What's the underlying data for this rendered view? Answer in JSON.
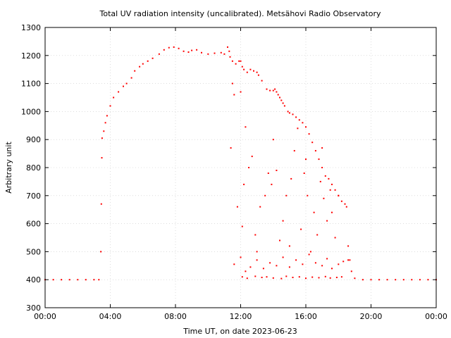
{
  "chart_data": {
    "type": "scatter",
    "title": "Total UV radiation intensity (uncalibrated). Metsähovi Radio Observatory",
    "xlabel": "Time UT, on date 2023-06-23",
    "ylabel": "Arbitrary unit",
    "xlim": [
      0,
      24
    ],
    "ylim": [
      300,
      1300
    ],
    "x_ticks": [
      0,
      4,
      8,
      12,
      16,
      20,
      24
    ],
    "x_tick_labels": [
      "00:00",
      "04:00",
      "08:00",
      "12:00",
      "16:00",
      "20:00",
      "00:00"
    ],
    "y_ticks": [
      300,
      400,
      500,
      600,
      700,
      800,
      900,
      1000,
      1100,
      1200,
      1300
    ],
    "y_tick_labels": [
      "300",
      "400",
      "500",
      "600",
      "700",
      "800",
      "900",
      "1000",
      "1100",
      "1200",
      "1300"
    ],
    "grid": true,
    "marker_color": "#ff0000",
    "series": [
      {
        "x": [
          0.0,
          0.5,
          1.0,
          1.5,
          2.0,
          2.5,
          3.0,
          3.3,
          3.42,
          3.45,
          3.48,
          3.5,
          3.6,
          3.7,
          3.8,
          4.0,
          4.2,
          4.5,
          4.8,
          5.0,
          5.3,
          5.5,
          5.8,
          6.0,
          6.3,
          6.6,
          7.0,
          7.3,
          7.6,
          7.9,
          8.2,
          8.5,
          8.8,
          9.0,
          9.3,
          9.6,
          10.0,
          10.4,
          10.8,
          11.0,
          11.2,
          11.3,
          11.35,
          11.5,
          11.7,
          11.9,
          12.0,
          12.1,
          12.2,
          12.4,
          12.6,
          12.8,
          13.0,
          13.1,
          13.3,
          13.6,
          13.8,
          14.0,
          14.1,
          14.2,
          14.3,
          14.4,
          14.5,
          14.6,
          14.7,
          14.9,
          15.0,
          15.2,
          15.4,
          15.6,
          15.8,
          16.0,
          16.2,
          16.4,
          16.6,
          16.8,
          17.0,
          17.2,
          17.4,
          17.6,
          17.8,
          18.0,
          18.2,
          18.4,
          18.5,
          18.6,
          18.7,
          18.8,
          19.0,
          19.5,
          20.0,
          20.5,
          21.0,
          21.5,
          22.0,
          22.5,
          23.0,
          23.5,
          24.0,
          11.4,
          11.5,
          11.6,
          11.8,
          12.0,
          12.1,
          12.2,
          12.3,
          12.5,
          12.7,
          12.9,
          13.0,
          13.2,
          13.5,
          13.7,
          13.9,
          14.0,
          14.2,
          14.4,
          14.6,
          14.8,
          15.0,
          15.1,
          15.3,
          15.5,
          15.7,
          15.9,
          16.0,
          16.1,
          16.3,
          16.5,
          16.7,
          16.9,
          17.0,
          17.1,
          17.3,
          17.5,
          17.6,
          17.8,
          18.0,
          11.6,
          12.0,
          12.3,
          12.6,
          13.0,
          13.4,
          13.8,
          14.2,
          14.6,
          15.0,
          15.4,
          15.8,
          16.2,
          16.6,
          17.0,
          17.3,
          17.6,
          18.0,
          18.3,
          18.6,
          12.1,
          12.4,
          12.9,
          13.3,
          13.6,
          14.0,
          14.5,
          14.8,
          15.2,
          15.6,
          16.0,
          16.4,
          16.8,
          17.2,
          17.5,
          17.9,
          18.2
        ],
        "y": [
          400,
          400,
          400,
          400,
          400,
          400,
          400,
          400,
          500,
          670,
          835,
          905,
          930,
          960,
          985,
          1020,
          1050,
          1070,
          1090,
          1100,
          1120,
          1145,
          1160,
          1170,
          1180,
          1190,
          1205,
          1220,
          1228,
          1230,
          1225,
          1215,
          1212,
          1218,
          1220,
          1210,
          1205,
          1208,
          1210,
          1205,
          1230,
          1215,
          1195,
          1180,
          1170,
          1180,
          1180,
          1160,
          1150,
          1140,
          1150,
          1145,
          1140,
          1130,
          1110,
          1080,
          1075,
          1075,
          1080,
          1070,
          1060,
          1050,
          1040,
          1030,
          1020,
          1000,
          995,
          990,
          980,
          970,
          960,
          945,
          920,
          890,
          860,
          830,
          800,
          770,
          760,
          740,
          720,
          700,
          680,
          670,
          660,
          520,
          470,
          430,
          405,
          400,
          400,
          400,
          400,
          400,
          400,
          400,
          400,
          400,
          400,
          870,
          1100,
          1060,
          660,
          1070,
          590,
          740,
          945,
          800,
          840,
          560,
          500,
          660,
          700,
          780,
          740,
          900,
          790,
          540,
          610,
          700,
          520,
          760,
          860,
          940,
          580,
          780,
          830,
          700,
          500,
          640,
          560,
          750,
          870,
          690,
          610,
          720,
          640,
          550,
          700,
          455,
          480,
          430,
          445,
          470,
          440,
          460,
          450,
          480,
          445,
          470,
          455,
          490,
          460,
          450,
          475,
          440,
          455,
          465,
          470,
          410,
          405,
          412,
          408,
          410,
          406,
          404,
          412,
          408,
          410,
          405,
          409,
          407,
          411,
          406,
          408,
          410
        ]
      }
    ]
  }
}
